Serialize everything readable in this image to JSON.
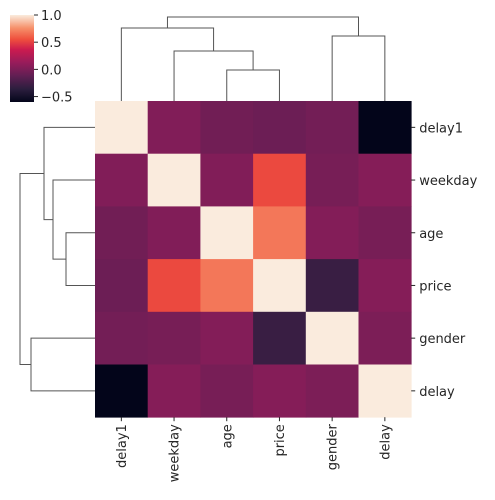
{
  "chart_data": {
    "type": "heatmap",
    "title": "",
    "row_labels": [
      "delay1",
      "weekday",
      "age",
      "price",
      "gender",
      "delay"
    ],
    "col_labels": [
      "delay1",
      "weekday",
      "age",
      "price",
      "gender",
      "delay"
    ],
    "values": [
      [
        1.0,
        0.02,
        -0.05,
        -0.07,
        -0.04,
        -0.6
      ],
      [
        0.02,
        1.0,
        0.02,
        0.53,
        -0.02,
        0.04
      ],
      [
        -0.05,
        0.02,
        1.0,
        0.68,
        0.03,
        -0.02
      ],
      [
        -0.07,
        0.53,
        0.68,
        1.0,
        -0.3,
        0.04
      ],
      [
        -0.04,
        -0.02,
        0.03,
        -0.3,
        1.0,
        0.0
      ],
      [
        -0.6,
        0.04,
        -0.02,
        0.04,
        0.0,
        1.0
      ]
    ],
    "vmin": -0.6,
    "vmax": 1.0,
    "colormap": "rocket",
    "colorbar_ticks": [
      1.0,
      0.5,
      0.0,
      -0.5
    ],
    "colorbar_tick_labels": [
      "1.0",
      "0.5",
      "0.0",
      "−0.5"
    ],
    "row_dendrogram": true,
    "col_dendrogram": true,
    "legend_placement": "top-left"
  },
  "colors": {
    "dendrogram_line": "#555555",
    "text": "#262626",
    "background": "#ffffff"
  }
}
